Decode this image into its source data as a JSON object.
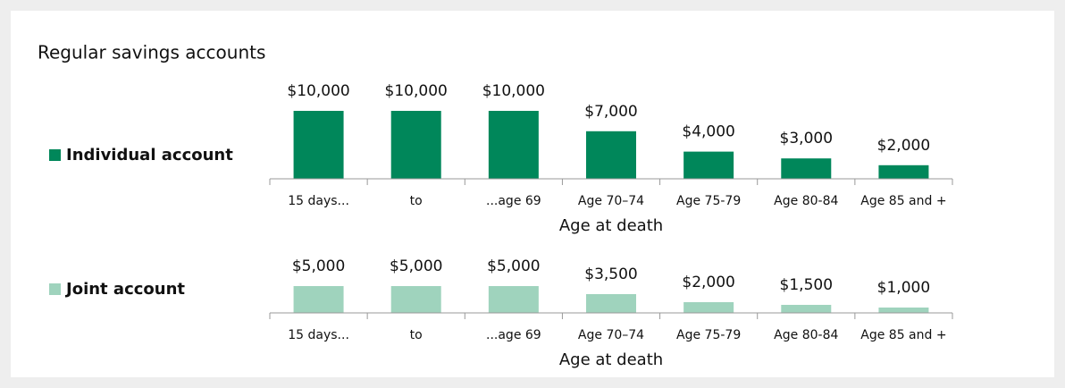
{
  "title": "Regular savings accounts",
  "chart_data": [
    {
      "type": "bar",
      "categories": [
        "15 days...",
        "to",
        "...age 69",
        "Age 70–74",
        "Age 75-79",
        "Age 80-84",
        "Age 85 and +"
      ],
      "series": [
        {
          "name": "Individual account",
          "color": "#00875a",
          "values": [
            10000,
            10000,
            10000,
            7000,
            4000,
            3000,
            2000
          ],
          "value_labels": [
            "$10,000",
            "$10,000",
            "$10,000",
            "$7,000",
            "$4,000",
            "$3,000",
            "$2,000"
          ]
        }
      ],
      "xlabel": "Age at death",
      "ylim": [
        0,
        10000
      ]
    },
    {
      "type": "bar",
      "categories": [
        "15 days...",
        "to",
        "...age 69",
        "Age 70–74",
        "Age 75-79",
        "Age 80-84",
        "Age 85 and +"
      ],
      "series": [
        {
          "name": "Joint account",
          "color": "#9fd3bd",
          "values": [
            5000,
            5000,
            5000,
            3500,
            2000,
            1500,
            1000
          ],
          "value_labels": [
            "$5,000",
            "$5,000",
            "$5,000",
            "$3,500",
            "$2,000",
            "$1,500",
            "$1,000"
          ]
        }
      ],
      "xlabel": "Age at death",
      "ylim": [
        0,
        10000
      ]
    }
  ]
}
